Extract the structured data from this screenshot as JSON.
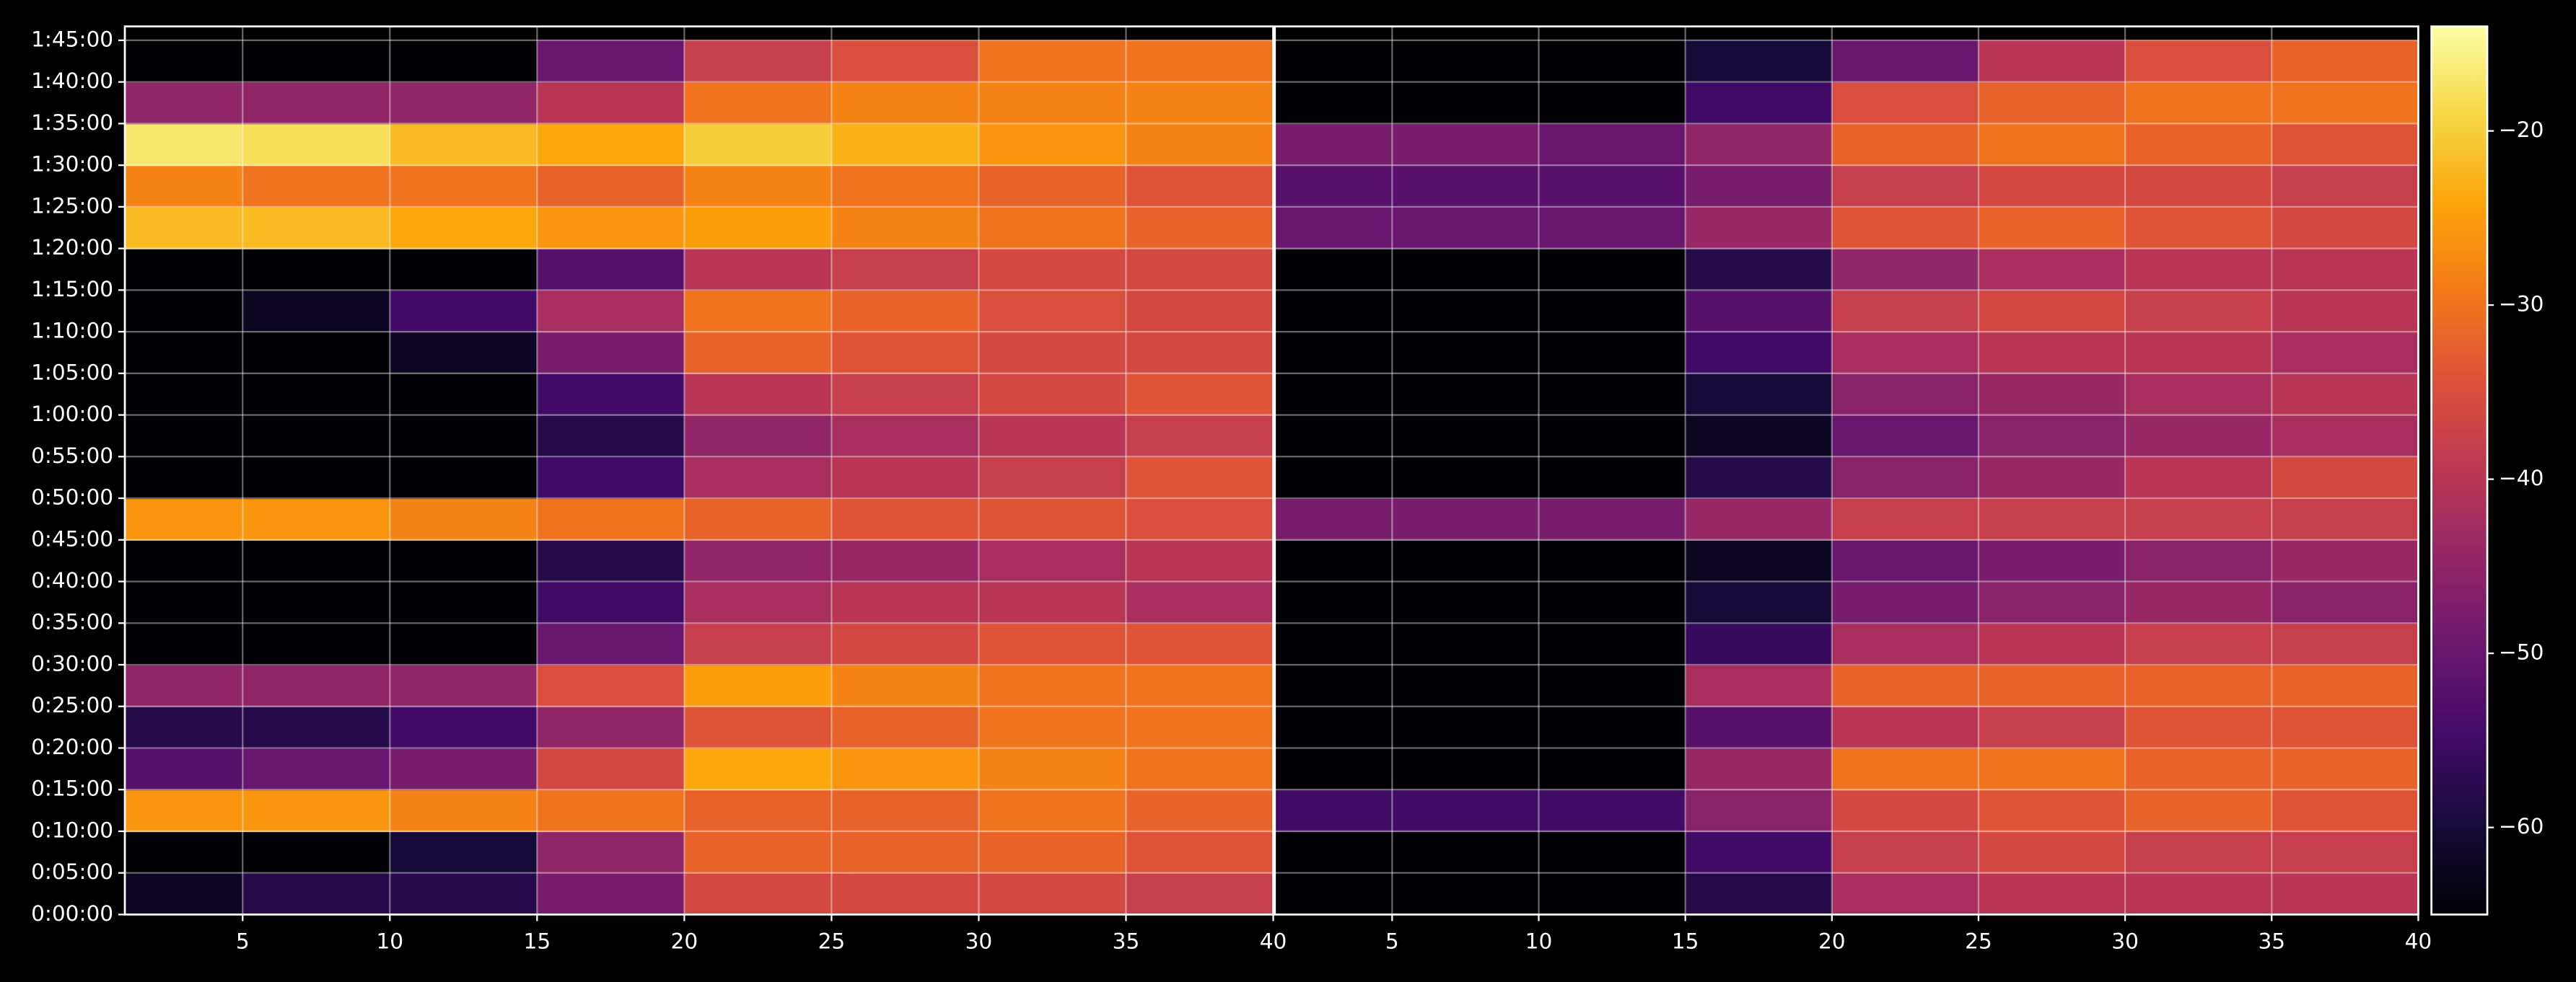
{
  "chart_data": [
    {
      "type": "heatmap",
      "colormap": "inferno",
      "grid": true,
      "xlim": [
        1,
        40
      ],
      "ylim": [
        0,
        6400
      ],
      "zlim": [
        -65,
        -14
      ],
      "xticks": [
        5,
        10,
        15,
        20,
        25,
        30,
        35,
        40
      ],
      "yticks": [
        {
          "value": 0,
          "label": "0:00:00"
        },
        {
          "value": 300,
          "label": "0:05:00"
        },
        {
          "value": 600,
          "label": "0:10:00"
        },
        {
          "value": 900,
          "label": "0:15:00"
        },
        {
          "value": 1200,
          "label": "0:20:00"
        },
        {
          "value": 1500,
          "label": "0:25:00"
        },
        {
          "value": 1800,
          "label": "0:30:00"
        },
        {
          "value": 2100,
          "label": "0:35:00"
        },
        {
          "value": 2400,
          "label": "0:40:00"
        },
        {
          "value": 2700,
          "label": "0:45:00"
        },
        {
          "value": 3000,
          "label": "0:50:00"
        },
        {
          "value": 3300,
          "label": "0:55:00"
        },
        {
          "value": 3600,
          "label": "1:00:00"
        },
        {
          "value": 3900,
          "label": "1:05:00"
        },
        {
          "value": 4200,
          "label": "1:10:00"
        },
        {
          "value": 4500,
          "label": "1:15:00"
        },
        {
          "value": 4800,
          "label": "1:20:00"
        },
        {
          "value": 5100,
          "label": "1:25:00"
        },
        {
          "value": 5400,
          "label": "1:30:00"
        },
        {
          "value": 5700,
          "label": "1:35:00"
        },
        {
          "value": 6000,
          "label": "1:40:00"
        },
        {
          "value": 6300,
          "label": "1:45:00"
        }
      ],
      "xbins": [
        1,
        5,
        10,
        15,
        20,
        25,
        30,
        35,
        40
      ],
      "ybins": [
        0,
        300,
        600,
        900,
        1200,
        1500,
        1800,
        2100,
        2400,
        2700,
        3000,
        3300,
        3600,
        3900,
        4200,
        4500,
        4800,
        5100,
        5400,
        5700,
        6000,
        6300
      ],
      "values": [
        [
          -62,
          -58,
          -58,
          -48,
          -36,
          -36,
          -36,
          -38
        ],
        [
          -65,
          -65,
          -60,
          -45,
          -32,
          -32,
          -32,
          -34
        ],
        [
          -26,
          -26,
          -28,
          -30,
          -32,
          -32,
          -30,
          -32
        ],
        [
          -52,
          -50,
          -48,
          -36,
          -24,
          -26,
          -28,
          -30
        ],
        [
          -58,
          -58,
          -55,
          -45,
          -34,
          -32,
          -30,
          -30
        ],
        [
          -45,
          -45,
          -45,
          -35,
          -25,
          -28,
          -30,
          -30
        ],
        [
          -65,
          -65,
          -65,
          -50,
          -38,
          -36,
          -34,
          -34
        ],
        [
          -65,
          -65,
          -65,
          -55,
          -42,
          -40,
          -40,
          -42
        ],
        [
          -65,
          -65,
          -65,
          -58,
          -45,
          -44,
          -42,
          -40
        ],
        [
          -26,
          -26,
          -28,
          -30,
          -32,
          -34,
          -34,
          -35
        ],
        [
          -65,
          -65,
          -65,
          -55,
          -42,
          -40,
          -38,
          -34
        ],
        [
          -65,
          -65,
          -65,
          -58,
          -45,
          -42,
          -40,
          -38
        ],
        [
          -65,
          -65,
          -65,
          -55,
          -40,
          -38,
          -36,
          -34
        ],
        [
          -65,
          -65,
          -62,
          -48,
          -32,
          -34,
          -36,
          -36
        ],
        [
          -65,
          -62,
          -55,
          -42,
          -30,
          -32,
          -35,
          -36
        ],
        [
          -65,
          -65,
          -65,
          -52,
          -40,
          -38,
          -36,
          -36
        ],
        [
          -22,
          -22,
          -24,
          -26,
          -25,
          -28,
          -30,
          -32
        ],
        [
          -28,
          -30,
          -30,
          -32,
          -28,
          -30,
          -32,
          -34
        ],
        [
          -17,
          -18,
          -22,
          -24,
          -20,
          -23,
          -26,
          -28
        ],
        [
          -45,
          -45,
          -45,
          -40,
          -30,
          -28,
          -28,
          -28
        ],
        [
          -65,
          -65,
          -65,
          -50,
          -38,
          -35,
          -30,
          -30
        ]
      ]
    },
    {
      "type": "heatmap",
      "colormap": "inferno",
      "grid": true,
      "xlim": [
        1,
        40
      ],
      "zlim": [
        -65,
        -14
      ],
      "xticks": [
        5,
        10,
        15,
        20,
        25,
        30,
        35,
        40
      ],
      "zticks": [
        {
          "value": -60,
          "label": "−60"
        },
        {
          "value": -50,
          "label": "−50"
        },
        {
          "value": -40,
          "label": "−40"
        },
        {
          "value": -30,
          "label": "−30"
        },
        {
          "value": -20,
          "label": "−20"
        }
      ],
      "xbins": [
        1,
        5,
        10,
        15,
        20,
        25,
        30,
        35,
        40
      ],
      "values": [
        [
          -65,
          -65,
          -65,
          -58,
          -42,
          -40,
          -40,
          -40
        ],
        [
          -65,
          -65,
          -65,
          -55,
          -38,
          -36,
          -38,
          -38
        ],
        [
          -55,
          -55,
          -55,
          -46,
          -36,
          -34,
          -32,
          -34
        ],
        [
          -65,
          -65,
          -65,
          -44,
          -30,
          -30,
          -32,
          -32
        ],
        [
          -65,
          -65,
          -65,
          -52,
          -40,
          -38,
          -34,
          -34
        ],
        [
          -65,
          -65,
          -65,
          -42,
          -32,
          -32,
          -32,
          -32
        ],
        [
          -65,
          -65,
          -65,
          -56,
          -42,
          -40,
          -38,
          -38
        ],
        [
          -65,
          -65,
          -65,
          -60,
          -48,
          -46,
          -44,
          -46
        ],
        [
          -65,
          -65,
          -65,
          -62,
          -50,
          -48,
          -46,
          -44
        ],
        [
          -48,
          -48,
          -48,
          -44,
          -38,
          -38,
          -38,
          -38
        ],
        [
          -65,
          -65,
          -65,
          -58,
          -46,
          -44,
          -40,
          -36
        ],
        [
          -65,
          -65,
          -65,
          -62,
          -50,
          -46,
          -44,
          -42
        ],
        [
          -65,
          -65,
          -65,
          -60,
          -46,
          -44,
          -42,
          -40
        ],
        [
          -65,
          -65,
          -65,
          -55,
          -42,
          -40,
          -40,
          -42
        ],
        [
          -65,
          -65,
          -65,
          -52,
          -38,
          -36,
          -38,
          -40
        ],
        [
          -65,
          -65,
          -65,
          -58,
          -45,
          -42,
          -40,
          -40
        ],
        [
          -50,
          -50,
          -50,
          -44,
          -34,
          -32,
          -34,
          -36
        ],
        [
          -52,
          -52,
          -52,
          -48,
          -38,
          -36,
          -36,
          -38
        ],
        [
          -48,
          -48,
          -50,
          -45,
          -32,
          -30,
          -32,
          -34
        ],
        [
          -65,
          -65,
          -65,
          -55,
          -35,
          -32,
          -30,
          -30
        ],
        [
          -65,
          -65,
          -65,
          -60,
          -50,
          -40,
          -35,
          -32
        ]
      ]
    }
  ]
}
